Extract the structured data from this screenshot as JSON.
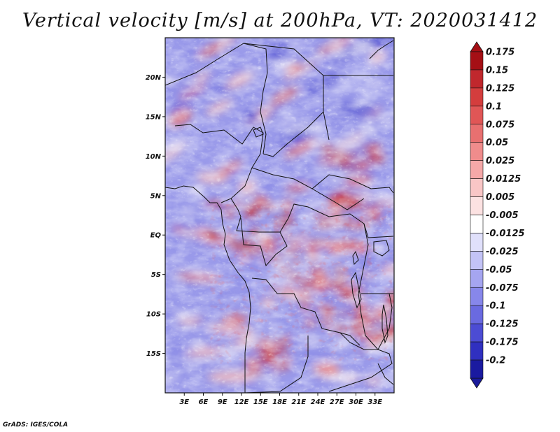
{
  "title": "Vertical velocity [m/s] at 200hPa, VT: 2020031412",
  "credit": "GrADS: IGES/COLA",
  "map": {
    "variable": "Vertical velocity",
    "units": "m/s",
    "level": "200hPa",
    "valid_time": "2020031412",
    "lon_range": [
      0,
      36
    ],
    "lat_range": [
      -20,
      25
    ],
    "lat_ticks": [
      {
        "value": 20,
        "label": "20N"
      },
      {
        "value": 15,
        "label": "15N"
      },
      {
        "value": 10,
        "label": "10N"
      },
      {
        "value": 5,
        "label": "5N"
      },
      {
        "value": 0,
        "label": "EQ"
      },
      {
        "value": -5,
        "label": "5S"
      },
      {
        "value": -10,
        "label": "10S"
      },
      {
        "value": -15,
        "label": "15S"
      }
    ],
    "lon_ticks": [
      {
        "value": 3,
        "label": "3E"
      },
      {
        "value": 6,
        "label": "6E"
      },
      {
        "value": 9,
        "label": "9E"
      },
      {
        "value": 12,
        "label": "12E"
      },
      {
        "value": 15,
        "label": "15E"
      },
      {
        "value": 18,
        "label": "18E"
      },
      {
        "value": 21,
        "label": "21E"
      },
      {
        "value": 24,
        "label": "24E"
      },
      {
        "value": 27,
        "label": "27E"
      },
      {
        "value": 30,
        "label": "30E"
      },
      {
        "value": 33,
        "label": "33E"
      }
    ]
  },
  "colorbar": {
    "levels": [
      {
        "label": "0.175",
        "color": "#a50f15"
      },
      {
        "label": "0.15",
        "color": "#c0282d"
      },
      {
        "label": "0.125",
        "color": "#d43d3d"
      },
      {
        "label": "0.1",
        "color": "#e05656"
      },
      {
        "label": "0.075",
        "color": "#e87070"
      },
      {
        "label": "0.05",
        "color": "#f08c8c"
      },
      {
        "label": "0.025",
        "color": "#f5a8a8"
      },
      {
        "label": "0.0125",
        "color": "#f9c6c6"
      },
      {
        "label": "0.005",
        "color": "#fce2e2"
      },
      {
        "label": "-0.005",
        "color": "#ffffff"
      },
      {
        "label": "-0.0125",
        "color": "#e0e0fb"
      },
      {
        "label": "-0.025",
        "color": "#c3c3f6"
      },
      {
        "label": "-0.05",
        "color": "#a5a5f0"
      },
      {
        "label": "-0.075",
        "color": "#8787ea"
      },
      {
        "label": "-0.1",
        "color": "#6a6ae0"
      },
      {
        "label": "-0.125",
        "color": "#4c4cd4"
      },
      {
        "label": "-0.175",
        "color": "#3030c0"
      },
      {
        "label": "-0.2",
        "color": "#1a1aa0"
      }
    ],
    "top_cap_color": "#a50f15",
    "bottom_cap_color": "#1a1a9a"
  },
  "field_colors": {
    "strong_up": "#c22a2a",
    "up": "#e87a7a",
    "weak_up": "#f6c0c0",
    "neutral": "#f7f4fa",
    "weak_down": "#c8c8f4",
    "down": "#8c8ce6",
    "strong_down": "#4a4ad0"
  }
}
